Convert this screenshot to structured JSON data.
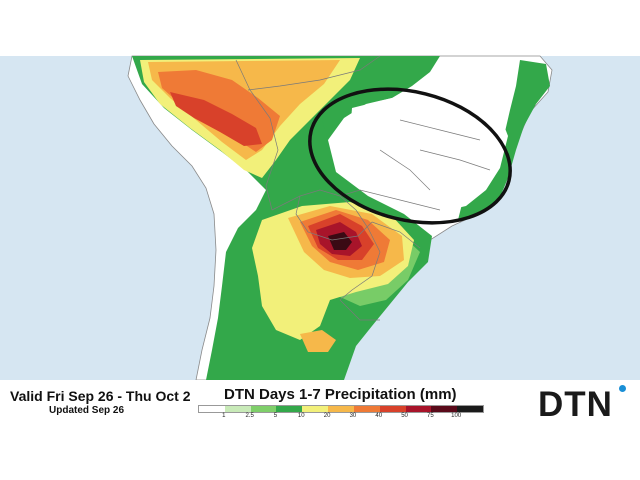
{
  "valid_text": "Valid Fri Sep 26 - Thu Oct 2",
  "updated_text": "Updated Sep 26",
  "legend": {
    "title": "DTN Days 1-7 Precipitation (mm)",
    "ticks": [
      "1",
      "2.5",
      "5",
      "10",
      "20",
      "30",
      "40",
      "50",
      "75",
      "100"
    ],
    "colors": [
      "#ffffff",
      "#c8eab8",
      "#7fcf6a",
      "#33a84a",
      "#f2f07a",
      "#f6b84a",
      "#ef7a36",
      "#d8412a",
      "#a8142a",
      "#5a0a1a",
      "#1a1a1a"
    ]
  },
  "logo": {
    "text": "DTN",
    "dot_color": "#1a8fd6"
  },
  "map_colors": {
    "ocean": "#d6e6f2",
    "land": "#ffffff",
    "border": "#7a7a7a",
    "circle": "#111111"
  }
}
